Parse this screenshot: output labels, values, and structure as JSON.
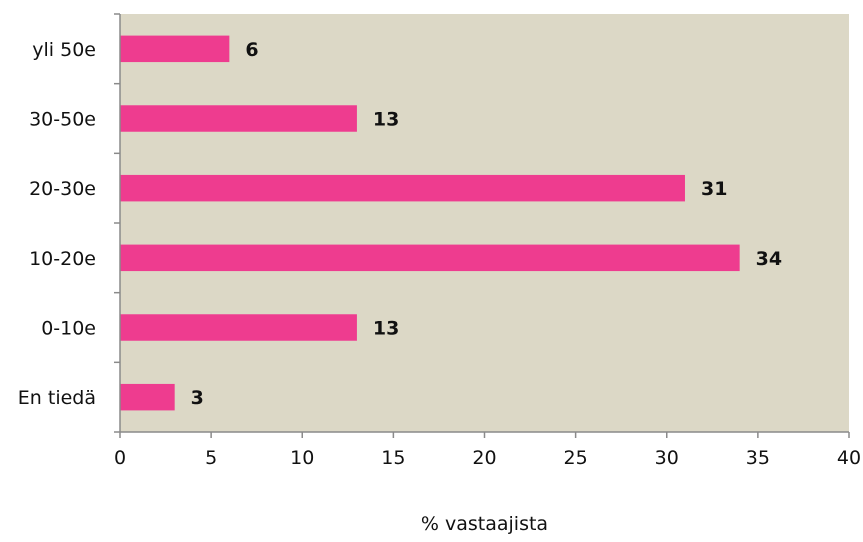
{
  "chart_data": {
    "type": "bar",
    "orientation": "horizontal",
    "categories": [
      "En tiedä",
      "0-10e",
      "10-20e",
      "20-30e",
      "30-50e",
      "yli 50e"
    ],
    "values": [
      3,
      13,
      34,
      31,
      13,
      6
    ],
    "data_labels": [
      "3",
      "13",
      "34",
      "31",
      "13",
      "6"
    ],
    "xlim": [
      0,
      40
    ],
    "xticks": [
      0,
      5,
      10,
      15,
      20,
      25,
      30,
      35,
      40
    ],
    "xtick_labels": [
      "0",
      "5",
      "10",
      "15",
      "20",
      "25",
      "30",
      "35",
      "40"
    ],
    "xlabel": "% vastaajista",
    "ylabel": "",
    "title": "",
    "grid": false,
    "legend": "none",
    "colors": {
      "bar": "#ee3c8f",
      "plot_background": "#dcd8c6",
      "axis": "#8a8a8a",
      "text": "#111111"
    }
  }
}
